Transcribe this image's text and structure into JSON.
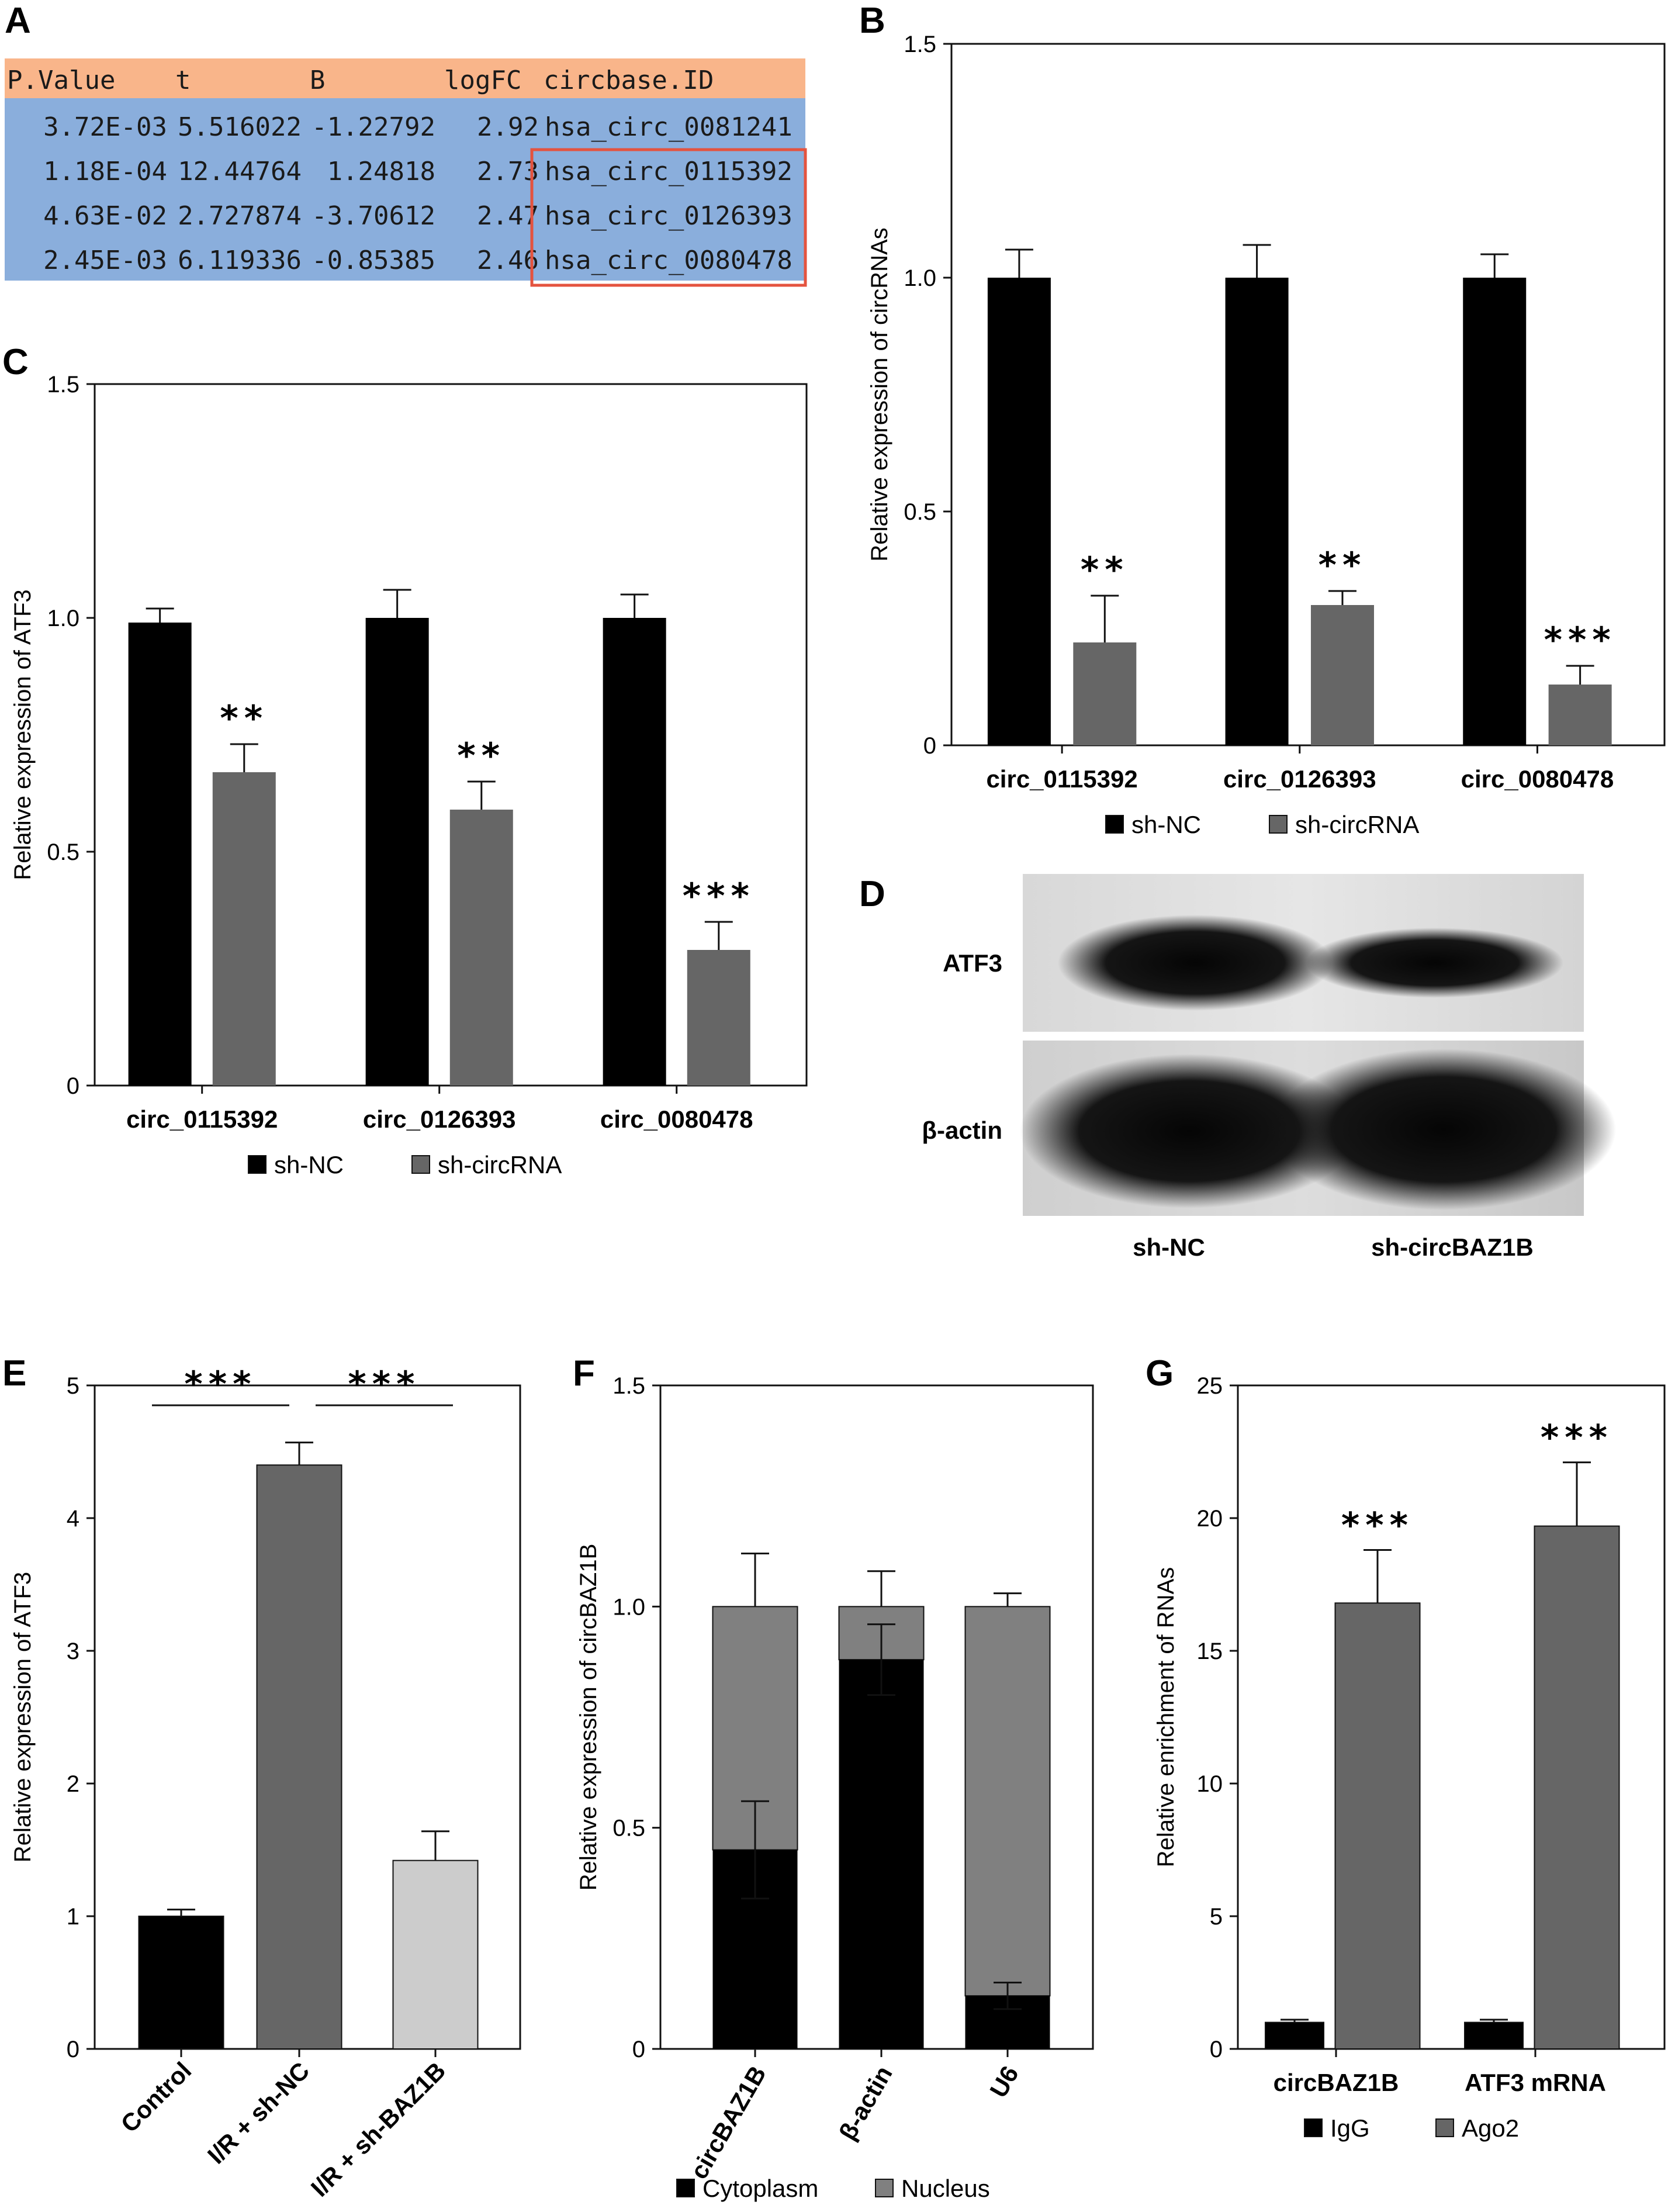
{
  "colors": {
    "black": "#000000",
    "dark_gray": "#666666",
    "mid_gray": "#808080",
    "light_gray": "#cccccc",
    "table_header": "#f9b58a",
    "table_body": "#8aaedc",
    "highlight_box": "#e4533f"
  },
  "panel_labels": {
    "A": "A",
    "B": "B",
    "C": "C",
    "D": "D",
    "E": "E",
    "F": "F",
    "G": "G"
  },
  "table": {
    "headers": [
      "P.Value",
      "t",
      "B",
      "logFC",
      "circbase.ID"
    ],
    "rows": [
      [
        "3.72E-03",
        "5.516022",
        "-1.22792",
        "2.92",
        "hsa_circ_0081241"
      ],
      [
        "1.18E-04",
        "12.44764",
        "1.24818",
        "2.73",
        "hsa_circ_0115392"
      ],
      [
        "4.63E-02",
        "2.727874",
        "-3.70612",
        "2.47",
        "hsa_circ_0126393"
      ],
      [
        "2.45E-03",
        "6.119336",
        "-0.85385",
        "2.46",
        "hsa_circ_0080478"
      ]
    ],
    "highlighted_rows": [
      1,
      2,
      3
    ]
  },
  "blot": {
    "labels": [
      "ATF3",
      "β-actin"
    ],
    "lanes": [
      "sh-NC",
      "sh-circBAZ1B"
    ]
  },
  "chart_data": [
    {
      "panel": "B",
      "type": "bar",
      "categories": [
        "circ_0115392",
        "circ_0126393",
        "circ_0080478"
      ],
      "series": [
        {
          "name": "sh-NC",
          "values": [
            1.0,
            1.0,
            1.0
          ],
          "errors": [
            0.06,
            0.07,
            0.05
          ],
          "color": "#000000"
        },
        {
          "name": "sh-circRNA",
          "values": [
            0.22,
            0.3,
            0.13
          ],
          "errors": [
            0.1,
            0.03,
            0.04
          ],
          "color": "#666666"
        }
      ],
      "significance": [
        "**",
        "**",
        "***"
      ],
      "ylabel": "Relative expression of circRNAs",
      "ylim": [
        0,
        1.5
      ],
      "yticks": [
        0,
        0.5,
        1.0,
        1.5
      ],
      "ytick_labels": [
        "0",
        "0.5",
        "1.0",
        "1.5"
      ],
      "legend": "bottom"
    },
    {
      "panel": "C",
      "type": "bar",
      "categories": [
        "circ_0115392",
        "circ_0126393",
        "circ_0080478"
      ],
      "series": [
        {
          "name": "sh-NC",
          "values": [
            0.99,
            1.0,
            1.0
          ],
          "errors": [
            0.03,
            0.06,
            0.05
          ],
          "color": "#000000"
        },
        {
          "name": "sh-circRNA",
          "values": [
            0.67,
            0.59,
            0.29
          ],
          "errors": [
            0.06,
            0.06,
            0.06
          ],
          "color": "#666666"
        }
      ],
      "significance": [
        "**",
        "**",
        "***"
      ],
      "ylabel": "Relative expression of ATF3",
      "ylim": [
        0,
        1.5
      ],
      "yticks": [
        0,
        0.5,
        1.0,
        1.5
      ],
      "ytick_labels": [
        "0",
        "0.5",
        "1.0",
        "1.5"
      ],
      "legend": "bottom"
    },
    {
      "panel": "E",
      "type": "bar",
      "categories": [
        "Control",
        "I/R + sh-NC",
        "I/R + sh-BAZ1B"
      ],
      "values": [
        1.0,
        4.4,
        1.42
      ],
      "errors": [
        0.05,
        0.17,
        0.22
      ],
      "colors": [
        "#000000",
        "#666666",
        "#cccccc"
      ],
      "significance_brackets": [
        {
          "from": 0,
          "to": 1,
          "label": "***"
        },
        {
          "from": 1,
          "to": 2,
          "label": "***"
        }
      ],
      "ylabel": "Relative expression of ATF3",
      "ylim": [
        0,
        5
      ],
      "yticks": [
        0,
        1,
        2,
        3,
        4,
        5
      ],
      "ytick_labels": [
        "0",
        "1",
        "2",
        "3",
        "4",
        "5"
      ]
    },
    {
      "panel": "F",
      "type": "bar",
      "stacked": true,
      "categories": [
        "circBAZ1B",
        "β-actin",
        "U6"
      ],
      "series": [
        {
          "name": "Cytoplasm",
          "values": [
            0.45,
            0.88,
            0.12
          ],
          "errors": [
            0.11,
            0.08,
            0.03
          ],
          "color": "#000000"
        },
        {
          "name": "Nucleus",
          "values": [
            0.55,
            0.12,
            0.88
          ],
          "errors": [
            0.12,
            0.08,
            0.03
          ],
          "color": "#808080"
        }
      ],
      "ylabel": "Relative expression of circBAZ1B",
      "ylim": [
        0,
        1.5
      ],
      "yticks": [
        0,
        0.5,
        1.0,
        1.5
      ],
      "ytick_labels": [
        "0",
        "0.5",
        "1.0",
        "1.5"
      ],
      "legend": "bottom"
    },
    {
      "panel": "G",
      "type": "bar",
      "categories": [
        "circBAZ1B",
        "ATF3 mRNA"
      ],
      "series": [
        {
          "name": "IgG",
          "values": [
            1.0,
            1.0
          ],
          "errors": [
            0.1,
            0.1
          ],
          "color": "#000000"
        },
        {
          "name": "Ago2",
          "values": [
            16.8,
            19.7
          ],
          "errors": [
            2.0,
            2.4
          ],
          "color": "#666666"
        }
      ],
      "significance": [
        "***",
        "***"
      ],
      "ylabel": "Relative enrichment of RNAs",
      "ylim": [
        0,
        25
      ],
      "yticks": [
        0,
        5,
        10,
        15,
        20,
        25
      ],
      "ytick_labels": [
        "0",
        "5",
        "10",
        "15",
        "20",
        "25"
      ],
      "legend": "bottom"
    }
  ]
}
